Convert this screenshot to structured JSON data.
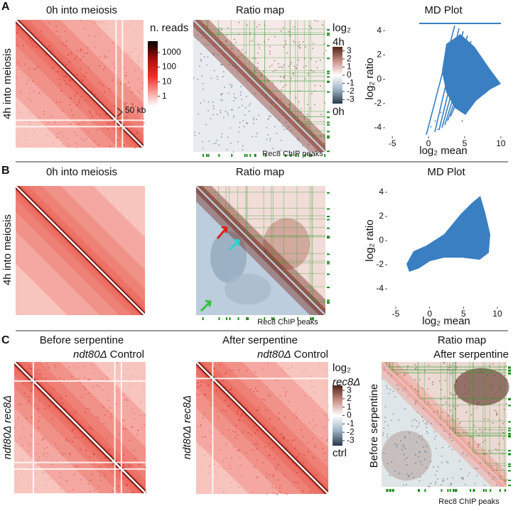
{
  "panel_a": {
    "label": "A",
    "heatmap": {
      "title": "0h into meiosis",
      "y_label": "4h into meiosis",
      "annotation": "50 kb"
    },
    "reads_colorbar": {
      "title": "n. reads",
      "log": true,
      "lim": [
        0.2,
        6000
      ],
      "ticks": [
        1000,
        100,
        10,
        1
      ]
    },
    "ratio_map": {
      "title": "Ratio map",
      "footer": "Rec8 ChIP peaks"
    },
    "ratio_colorbar": {
      "title": "log₂",
      "top_label": "4h",
      "bottom_label": "0h",
      "lim": [
        -3.5,
        3.5
      ],
      "ticks": [
        3,
        2,
        1,
        0,
        -1,
        -2,
        -3
      ]
    },
    "md_plot": {
      "title": "MD Plot",
      "x_label": "log₂ mean",
      "y_label": "log₂ ratio",
      "xlim": [
        -6,
        10.5
      ],
      "ylim": [
        -4.7,
        4.77
      ],
      "xticks": [
        -5,
        0,
        5,
        10
      ],
      "yticks": [
        4,
        2,
        0,
        -2,
        -4
      ]
    }
  },
  "panel_b": {
    "label": "B",
    "heatmap": {
      "title": "0h into meiosis",
      "y_label": "4h into meiosis"
    },
    "ratio_map": {
      "title": "Ratio map",
      "footer": "Rec8 ChIP peaks"
    },
    "md_plot": {
      "title": "MD Plot",
      "x_label": "log₂ mean",
      "y_label": "log₂ ratio",
      "xlim": [
        -6.26,
        11.05
      ],
      "ylim": [
        -5.47,
        4.53
      ],
      "xticks": [
        -5,
        0,
        5,
        10
      ],
      "yticks": [
        4,
        2,
        0,
        -2,
        -4
      ]
    }
  },
  "panel_c": {
    "label": "C",
    "left": {
      "title": "Before serpentine",
      "genotype": "ndt80Δ",
      "condition": "Control",
      "y_label": "ndt80Δ rec8Δ"
    },
    "middle": {
      "title": "After serpentine",
      "genotype": "ndt80Δ",
      "condition": "Control",
      "y_label": "ndt80Δ rec8Δ"
    },
    "ratio_colorbar": {
      "title": "log₂",
      "top_label": "rec8Δ",
      "bottom_label": "ctrl",
      "lim": [
        -3.6,
        3.6
      ],
      "ticks": [
        3,
        2,
        1,
        0,
        -1,
        -2,
        -3
      ]
    },
    "ratio_map": {
      "title": "Ratio map",
      "subtitle": "After serpentine",
      "y_label": "Before serpentine",
      "footer": "Rec8 ChIP peaks"
    }
  }
}
